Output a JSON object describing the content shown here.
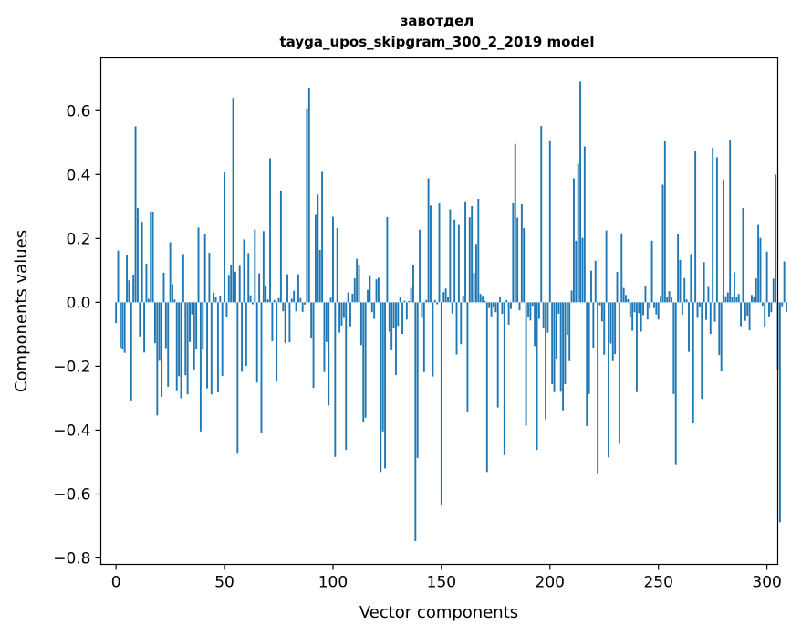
{
  "chart_data": {
    "type": "bar",
    "title": "завотдел",
    "subtitle": "tayga_upos_skipgram_300_2_2019 model",
    "xlabel": "Vector components",
    "ylabel": "Components values",
    "xlim": [
      -7,
      305
    ],
    "ylim": [
      -0.82,
      0.765
    ],
    "xticks": [
      0,
      50,
      100,
      150,
      200,
      250,
      300
    ],
    "yticks": [
      -0.8,
      -0.6,
      -0.4,
      -0.2,
      0.0,
      0.2,
      0.4,
      0.6
    ],
    "ytick_labels": [
      "−0.8",
      "−0.6",
      "−0.4",
      "−0.2",
      "0.0",
      "0.2",
      "0.4",
      "0.6"
    ],
    "grid": false,
    "bar_color": "#1f77b4",
    "values": [
      -0.065,
      0.162,
      -0.141,
      -0.146,
      -0.158,
      0.147,
      0.069,
      -0.307,
      0.087,
      0.551,
      0.295,
      -0.107,
      0.252,
      -0.157,
      0.121,
      0.011,
      0.285,
      0.284,
      -0.128,
      -0.354,
      -0.183,
      -0.296,
      0.093,
      -0.143,
      -0.264,
      0.188,
      0.057,
      0.009,
      -0.278,
      -0.231,
      -0.3,
      0.151,
      -0.228,
      -0.288,
      -0.124,
      -0.038,
      -0.21,
      -0.146,
      0.234,
      -0.404,
      -0.149,
      0.215,
      -0.269,
      0.155,
      -0.288,
      0.03,
      0.017,
      -0.282,
      0.021,
      -0.23,
      0.409,
      -0.045,
      0.086,
      0.118,
      0.64,
      0.096,
      -0.474,
      0.114,
      -0.217,
      0.197,
      -0.199,
      0.154,
      0.022,
      -0.006,
      0.228,
      -0.251,
      0.091,
      -0.41,
      0.223,
      0.052,
      0.009,
      0.451,
      -0.122,
      0.007,
      -0.248,
      0.013,
      0.35,
      -0.028,
      -0.127,
      0.088,
      -0.125,
      0.011,
      0.036,
      -0.028,
      0.088,
      0.013,
      -0.03,
      -0.007,
      0.607,
      0.67,
      -0.113,
      -0.268,
      0.274,
      0.337,
      0.164,
      0.411,
      -0.218,
      -0.124,
      -0.323,
      0.015,
      0.268,
      -0.484,
      0.232,
      -0.095,
      -0.073,
      -0.049,
      -0.462,
      0.031,
      -0.075,
      0.027,
      0.075,
      0.136,
      0.115,
      -0.134,
      -0.374,
      -0.361,
      0.039,
      0.085,
      -0.031,
      -0.052,
      0.072,
      0.077,
      -0.531,
      -0.404,
      -0.52,
      0.267,
      -0.092,
      -0.15,
      -0.08,
      -0.227,
      -0.074,
      0.017,
      -0.099,
      0.005,
      -0.054,
      0.004,
      0.045,
      0.116,
      -0.747,
      -0.487,
      0.227,
      -0.049,
      -0.218,
      0.007,
      0.388,
      0.303,
      -0.232,
      0.007,
      -0.006,
      0.309,
      -0.634,
      0.032,
      0.043,
      0.017,
      0.291,
      -0.035,
      0.259,
      -0.163,
      0.242,
      -0.131,
      0.021,
      0.316,
      -0.344,
      0.266,
      0.301,
      0.092,
      0.183,
      0.324,
      0.026,
      0.02,
      0.004,
      -0.531,
      -0.018,
      -0.044,
      -0.014,
      -0.031,
      -0.329,
      0.015,
      -0.036,
      -0.478,
      0.007,
      -0.07,
      -0.021,
      0.312,
      0.496,
      0.265,
      -0.025,
      0.307,
      0.232,
      -0.386,
      -0.047,
      -0.057,
      -0.011,
      -0.137,
      -0.462,
      -0.052,
      0.552,
      -0.081,
      -0.366,
      -0.095,
      0.507,
      -0.256,
      -0.281,
      -0.176,
      -0.036,
      -0.28,
      -0.338,
      -0.256,
      -0.102,
      -0.184,
      0.037,
      0.388,
      0.193,
      0.434,
      0.691,
      0.202,
      0.488,
      -0.387,
      -0.287,
      0.099,
      -0.142,
      0.13,
      -0.535,
      -0.009,
      -0.06,
      -0.164,
      0.225,
      -0.485,
      -0.129,
      -0.184,
      -0.162,
      0.095,
      -0.443,
      0.216,
      0.045,
      0.023,
      0.01,
      -0.045,
      -0.089,
      -0.031,
      -0.281,
      -0.034,
      -0.092,
      -0.04,
      0.052,
      -0.054,
      -0.019,
      0.193,
      -0.018,
      -0.038,
      -0.054,
      0.02,
      0.368,
      0.506,
      0.018,
      0.035,
      0.015,
      -0.287,
      -0.509,
      0.213,
      0.133,
      -0.039,
      0.076,
      0.009,
      -0.155,
      0.151,
      -0.379,
      0.472,
      -0.049,
      -0.016,
      -0.302,
      0.126,
      -0.055,
      0.048,
      -0.099,
      0.484,
      -0.061,
      0.454,
      -0.165,
      -0.216,
      0.383,
      0.019,
      0.031,
      0.509,
      0.018,
      0.094,
      0.016,
      0.026,
      -0.075,
      0.295,
      -0.058,
      -0.042,
      -0.088,
      0.023,
      0.017,
      0.075,
      0.242,
      0.202,
      -0.011,
      -0.076,
      0.159,
      -0.044,
      -0.031,
      0.074,
      0.4,
      -0.213,
      -0.688,
      -0.012,
      0.128,
      -0.03
    ]
  }
}
